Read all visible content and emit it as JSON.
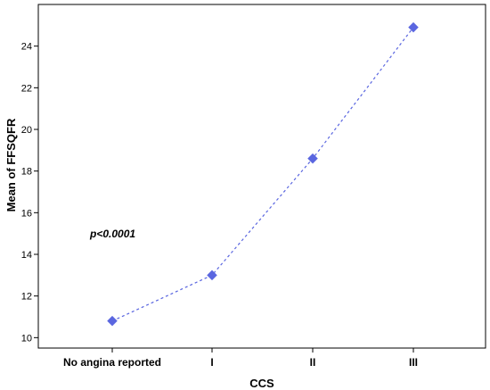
{
  "chart_data": {
    "type": "line",
    "categories": [
      "No angina reported",
      "I",
      "II",
      "III"
    ],
    "series": [
      {
        "values": [
          10.8,
          13.0,
          18.6,
          24.9
        ]
      }
    ],
    "xlabel": "CCS",
    "ylabel": "Mean of FFSQFR",
    "ylim": [
      9.5,
      26
    ],
    "yticks": [
      10,
      12,
      14,
      16,
      18,
      20,
      22,
      24
    ],
    "annotation": "p<0.0001",
    "grid": false,
    "marker": "diamond",
    "line_style": "dotted",
    "colors": {
      "series": "#5a66e0",
      "axis": "#000000"
    }
  }
}
